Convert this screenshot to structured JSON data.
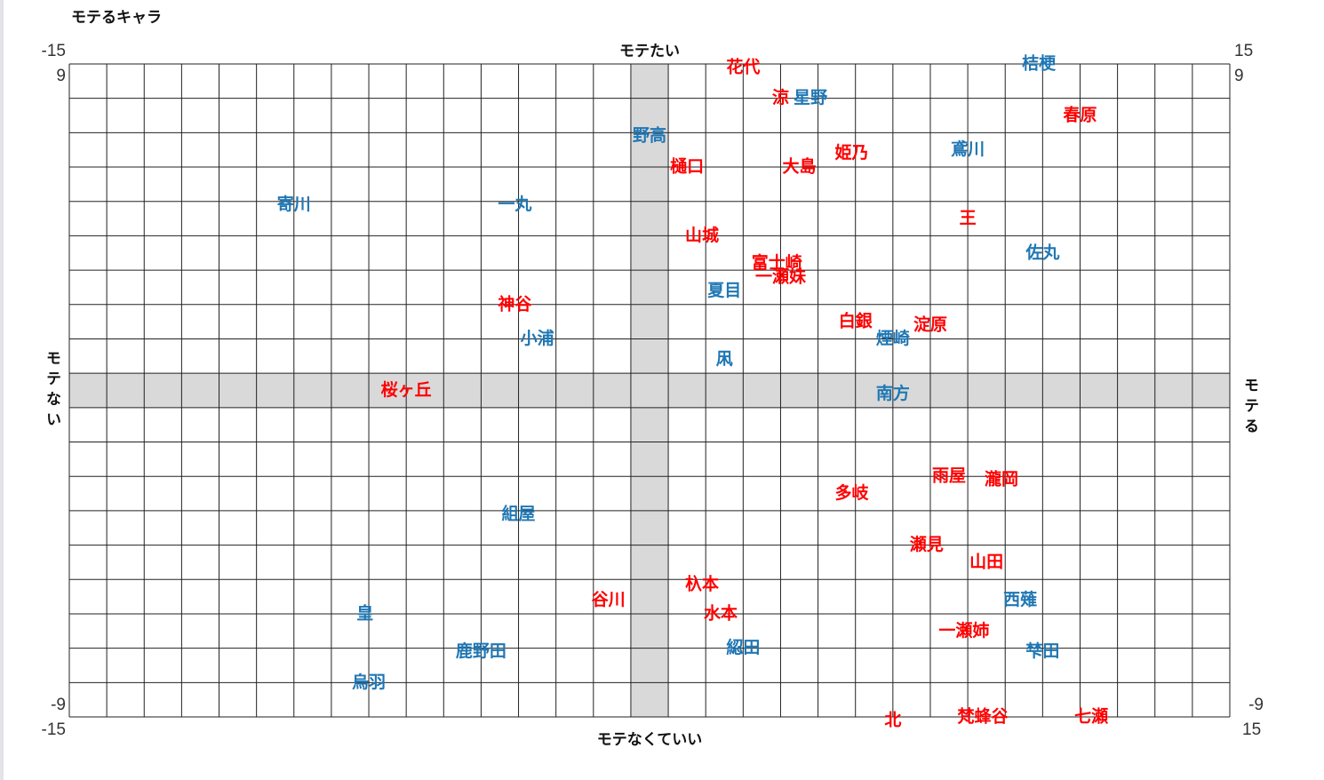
{
  "chart_data": {
    "type": "scatter",
    "title": "モテるキャラ",
    "top_label": "モテたい",
    "bottom_label": "モテなくていい",
    "left_label": "モテない",
    "right_label": "モテる",
    "xlim": [
      -15,
      15
    ],
    "ylim": [
      -9,
      9
    ],
    "xticks": [
      -15,
      15
    ],
    "yticks": [
      -9,
      9
    ],
    "grid": true,
    "series": [
      {
        "color": "#ff0000",
        "labels": [
          "花代",
          "涼",
          "春原",
          "姫乃",
          "大島",
          "樋口",
          "王",
          "山城",
          "富士崎",
          "一瀬妹",
          "神谷",
          "白銀",
          "淀原",
          "桜ヶ丘",
          "雨屋",
          "瀧岡",
          "多岐",
          "瀬見",
          "山田",
          "杁本",
          "谷川",
          "水本",
          "一瀬姉",
          "北",
          "梵蜂谷",
          "七瀬"
        ],
        "x": [
          2.5,
          3.5,
          11.5,
          5.4,
          4.0,
          1.0,
          8.5,
          1.4,
          3.4,
          3.5,
          -3.6,
          5.5,
          7.5,
          -6.5,
          8.0,
          9.4,
          5.4,
          7.4,
          9.0,
          1.4,
          -1.1,
          1.9,
          8.4,
          6.5,
          8.9,
          11.8
        ],
        "y": [
          9.4,
          8.5,
          8.0,
          6.9,
          6.5,
          6.5,
          5.0,
          4.5,
          3.7,
          3.3,
          2.5,
          2.0,
          1.9,
          0.0,
          -2.5,
          -2.6,
          -3.0,
          -4.5,
          -5.0,
          -5.65,
          -6.1,
          -6.5,
          -7.0,
          -9.6,
          -9.5,
          -9.5
        ]
      },
      {
        "color": "#1f77b4",
        "labels": [
          "桔梗",
          "星野",
          "鳶川",
          "野高",
          "寄川",
          "一丸",
          "佐丸",
          "夏目",
          "小浦",
          "煙崎",
          "凩",
          "南方",
          "組屋",
          "西薙",
          "皇",
          "鹿野田",
          "綛田",
          "梺田",
          "烏羽"
        ],
        "x": [
          10.4,
          4.3,
          8.5,
          0.0,
          -9.5,
          -3.6,
          10.5,
          2.0,
          -3.0,
          6.5,
          2.0,
          6.5,
          -3.5,
          9.9,
          -7.6,
          -4.5,
          2.5,
          10.5,
          -7.5
        ],
        "y": [
          9.5,
          8.5,
          7.0,
          7.4,
          5.4,
          5.4,
          4.0,
          2.9,
          1.5,
          1.5,
          0.9,
          -0.1,
          -3.6,
          -6.1,
          -6.5,
          -7.6,
          -7.5,
          -7.6,
          -8.5
        ]
      }
    ]
  }
}
